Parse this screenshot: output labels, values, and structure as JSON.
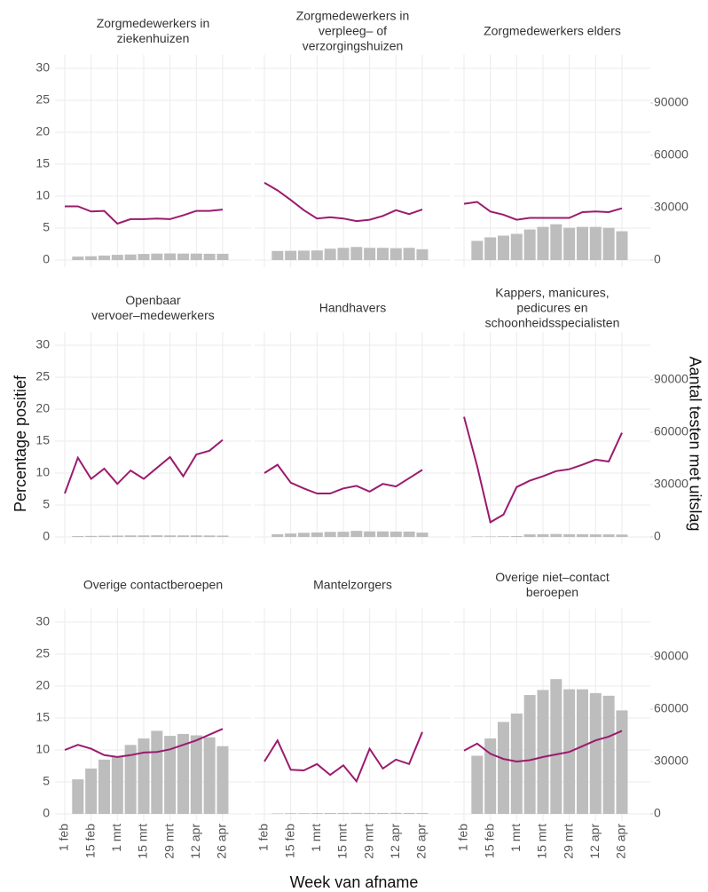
{
  "chart_data": {
    "type": "facet",
    "x_label": "Week van afname",
    "y_label": "Percentage positief",
    "y2_label": "Aantal testen met uitslag",
    "categories": [
      "1 feb",
      null,
      "15 feb",
      null,
      "1 mrt",
      null,
      "15 mrt",
      null,
      "29 mrt",
      null,
      "12 apr",
      null,
      "26 apr"
    ],
    "ylim": [
      0,
      31
    ],
    "yticks": [
      0,
      5,
      10,
      15,
      20,
      25,
      30
    ],
    "y2lim": [
      0,
      113500
    ],
    "y2ticks": [
      0,
      30000,
      60000,
      90000
    ],
    "grid": true,
    "line_color": "#9b1b6e",
    "bar_color": "#bdbdbd",
    "panels": [
      {
        "title": [
          "Zorgmedewerkers in",
          "ziekenhuizen"
        ],
        "line": [
          8.4,
          8.4,
          7.6,
          7.7,
          5.7,
          6.4,
          6.4,
          6.5,
          6.4,
          7.0,
          7.7,
          7.7,
          7.9
        ],
        "bars": [
          null,
          2000,
          2200,
          2600,
          3000,
          3200,
          3500,
          3700,
          3800,
          3700,
          3700,
          3600,
          3600
        ]
      },
      {
        "title": [
          "Zorgmedewerkers in",
          "verpleeg– of",
          "verzorgingshuizen"
        ],
        "line": [
          12.1,
          10.9,
          9.4,
          7.8,
          6.5,
          6.7,
          6.5,
          6.1,
          6.3,
          6.9,
          7.8,
          7.2,
          7.9
        ],
        "bars": [
          null,
          5200,
          5300,
          5400,
          5500,
          6500,
          7000,
          7500,
          7000,
          7000,
          6800,
          7000,
          6200
        ]
      },
      {
        "title": [
          "Zorgmedewerkers elders"
        ],
        "line": [
          8.8,
          9.1,
          7.6,
          7.1,
          6.3,
          6.6,
          6.6,
          6.6,
          6.6,
          7.5,
          7.6,
          7.5,
          8.1
        ],
        "bars": [
          null,
          11000,
          13000,
          14000,
          15000,
          17500,
          19000,
          20500,
          18500,
          19000,
          19000,
          18500,
          16500
        ]
      },
      {
        "title": [
          "Openbaar",
          "vervoer–medewerkers"
        ],
        "line": [
          6.8,
          12.4,
          9.1,
          10.7,
          8.3,
          10.4,
          9.1,
          10.8,
          12.5,
          9.5,
          12.9,
          13.5,
          15.2
        ],
        "bars": [
          null,
          500,
          600,
          700,
          800,
          900,
          900,
          950,
          900,
          900,
          900,
          850,
          800
        ]
      },
      {
        "title": [
          "Handhavers"
        ],
        "line": [
          10.0,
          11.3,
          8.5,
          7.6,
          6.8,
          6.8,
          7.6,
          8.0,
          7.1,
          8.3,
          7.9,
          9.2,
          10.5
        ],
        "bars": [
          null,
          1600,
          2000,
          2400,
          2600,
          2900,
          3000,
          3500,
          3200,
          3200,
          3100,
          3100,
          2500
        ]
      },
      {
        "title": [
          "Kappers, manicures,",
          "pedicures en",
          "schoonheidsspecialisten"
        ],
        "line": [
          18.8,
          11.1,
          2.3,
          3.5,
          7.8,
          8.8,
          9.5,
          10.3,
          10.6,
          11.3,
          12.1,
          11.8,
          16.3
        ],
        "bars": [
          null,
          300,
          300,
          400,
          500,
          1500,
          1600,
          1700,
          1600,
          1600,
          1500,
          1500,
          1400
        ]
      },
      {
        "title": [
          "Overige contactberoepen"
        ],
        "line": [
          10.0,
          10.8,
          10.2,
          9.2,
          8.9,
          9.2,
          9.6,
          9.7,
          10.1,
          10.8,
          11.5,
          12.4,
          13.3
        ],
        "bars": [
          null,
          19800,
          26000,
          31100,
          33000,
          39500,
          43200,
          47600,
          44700,
          45800,
          45000,
          43900,
          38800
        ]
      },
      {
        "title": [
          "Mantelzorgers"
        ],
        "line": [
          8.2,
          11.5,
          6.9,
          6.8,
          7.8,
          6.1,
          7.6,
          5.1,
          10.2,
          7.1,
          8.5,
          7.8,
          12.8
        ],
        "bars": [
          null,
          300,
          400,
          400,
          450,
          500,
          550,
          600,
          550,
          550,
          600,
          550,
          500
        ]
      },
      {
        "title": [
          "Overige niet–contact",
          "beroepen"
        ],
        "line": [
          9.9,
          11.0,
          9.4,
          8.6,
          8.2,
          8.4,
          8.9,
          9.3,
          9.7,
          10.6,
          11.5,
          12.1,
          13.0
        ],
        "bars": [
          null,
          33300,
          43200,
          52700,
          57500,
          68100,
          71000,
          77200,
          71400,
          71400,
          69200,
          67700,
          59300
        ]
      }
    ]
  }
}
